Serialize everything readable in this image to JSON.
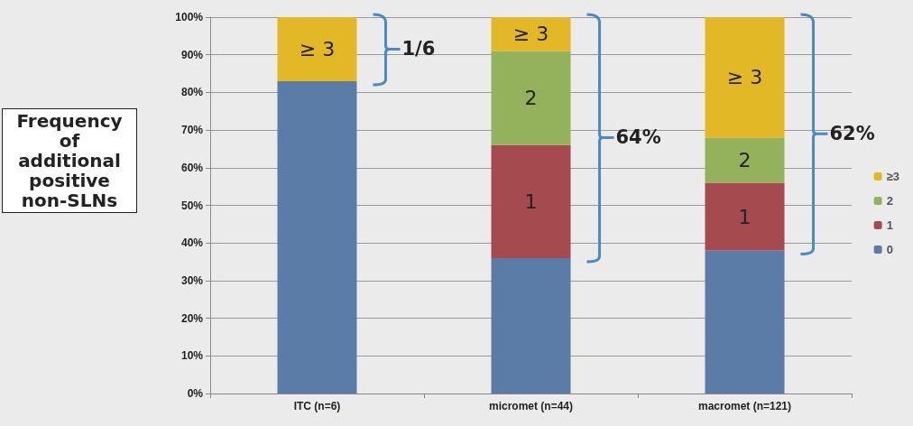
{
  "chart_data": {
    "type": "bar",
    "stacked": true,
    "ylabel": "Frequency of additional positive non-SLNs",
    "categories": [
      "ITC (n=6)",
      "micromet (n=44)",
      "macromet (n=121)"
    ],
    "series": [
      {
        "name": "0",
        "color": "#5a7ca6",
        "values": [
          83,
          36,
          38
        ]
      },
      {
        "name": "1",
        "color": "#a54b50",
        "values": [
          0,
          30,
          18
        ]
      },
      {
        "name": "2",
        "color": "#94b25c",
        "values": [
          0,
          25,
          12
        ]
      },
      {
        "name": "≥3",
        "color": "#e2b826",
        "values": [
          17,
          9,
          32
        ]
      }
    ],
    "ylim": [
      0,
      100
    ],
    "yticks": [
      {
        "value": 0,
        "label": "0%"
      },
      {
        "value": 10,
        "label": "10%"
      },
      {
        "value": 20,
        "label": "20%"
      },
      {
        "value": 30,
        "label": "30%"
      },
      {
        "value": 40,
        "label": "40%"
      },
      {
        "value": 50,
        "label": "50%"
      },
      {
        "value": 60,
        "label": "60%"
      },
      {
        "value": 70,
        "label": "70%"
      },
      {
        "value": 80,
        "label": "80%"
      },
      {
        "value": 90,
        "label": "90%"
      },
      {
        "value": 100,
        "label": "100%"
      }
    ],
    "grid": "y",
    "legend": "right",
    "annotations": [
      "1/6",
      "64%",
      "62%",
      "≥ 3",
      "≥ 3",
      "2",
      "1",
      "≥ 3",
      "2",
      "1"
    ]
  }
}
